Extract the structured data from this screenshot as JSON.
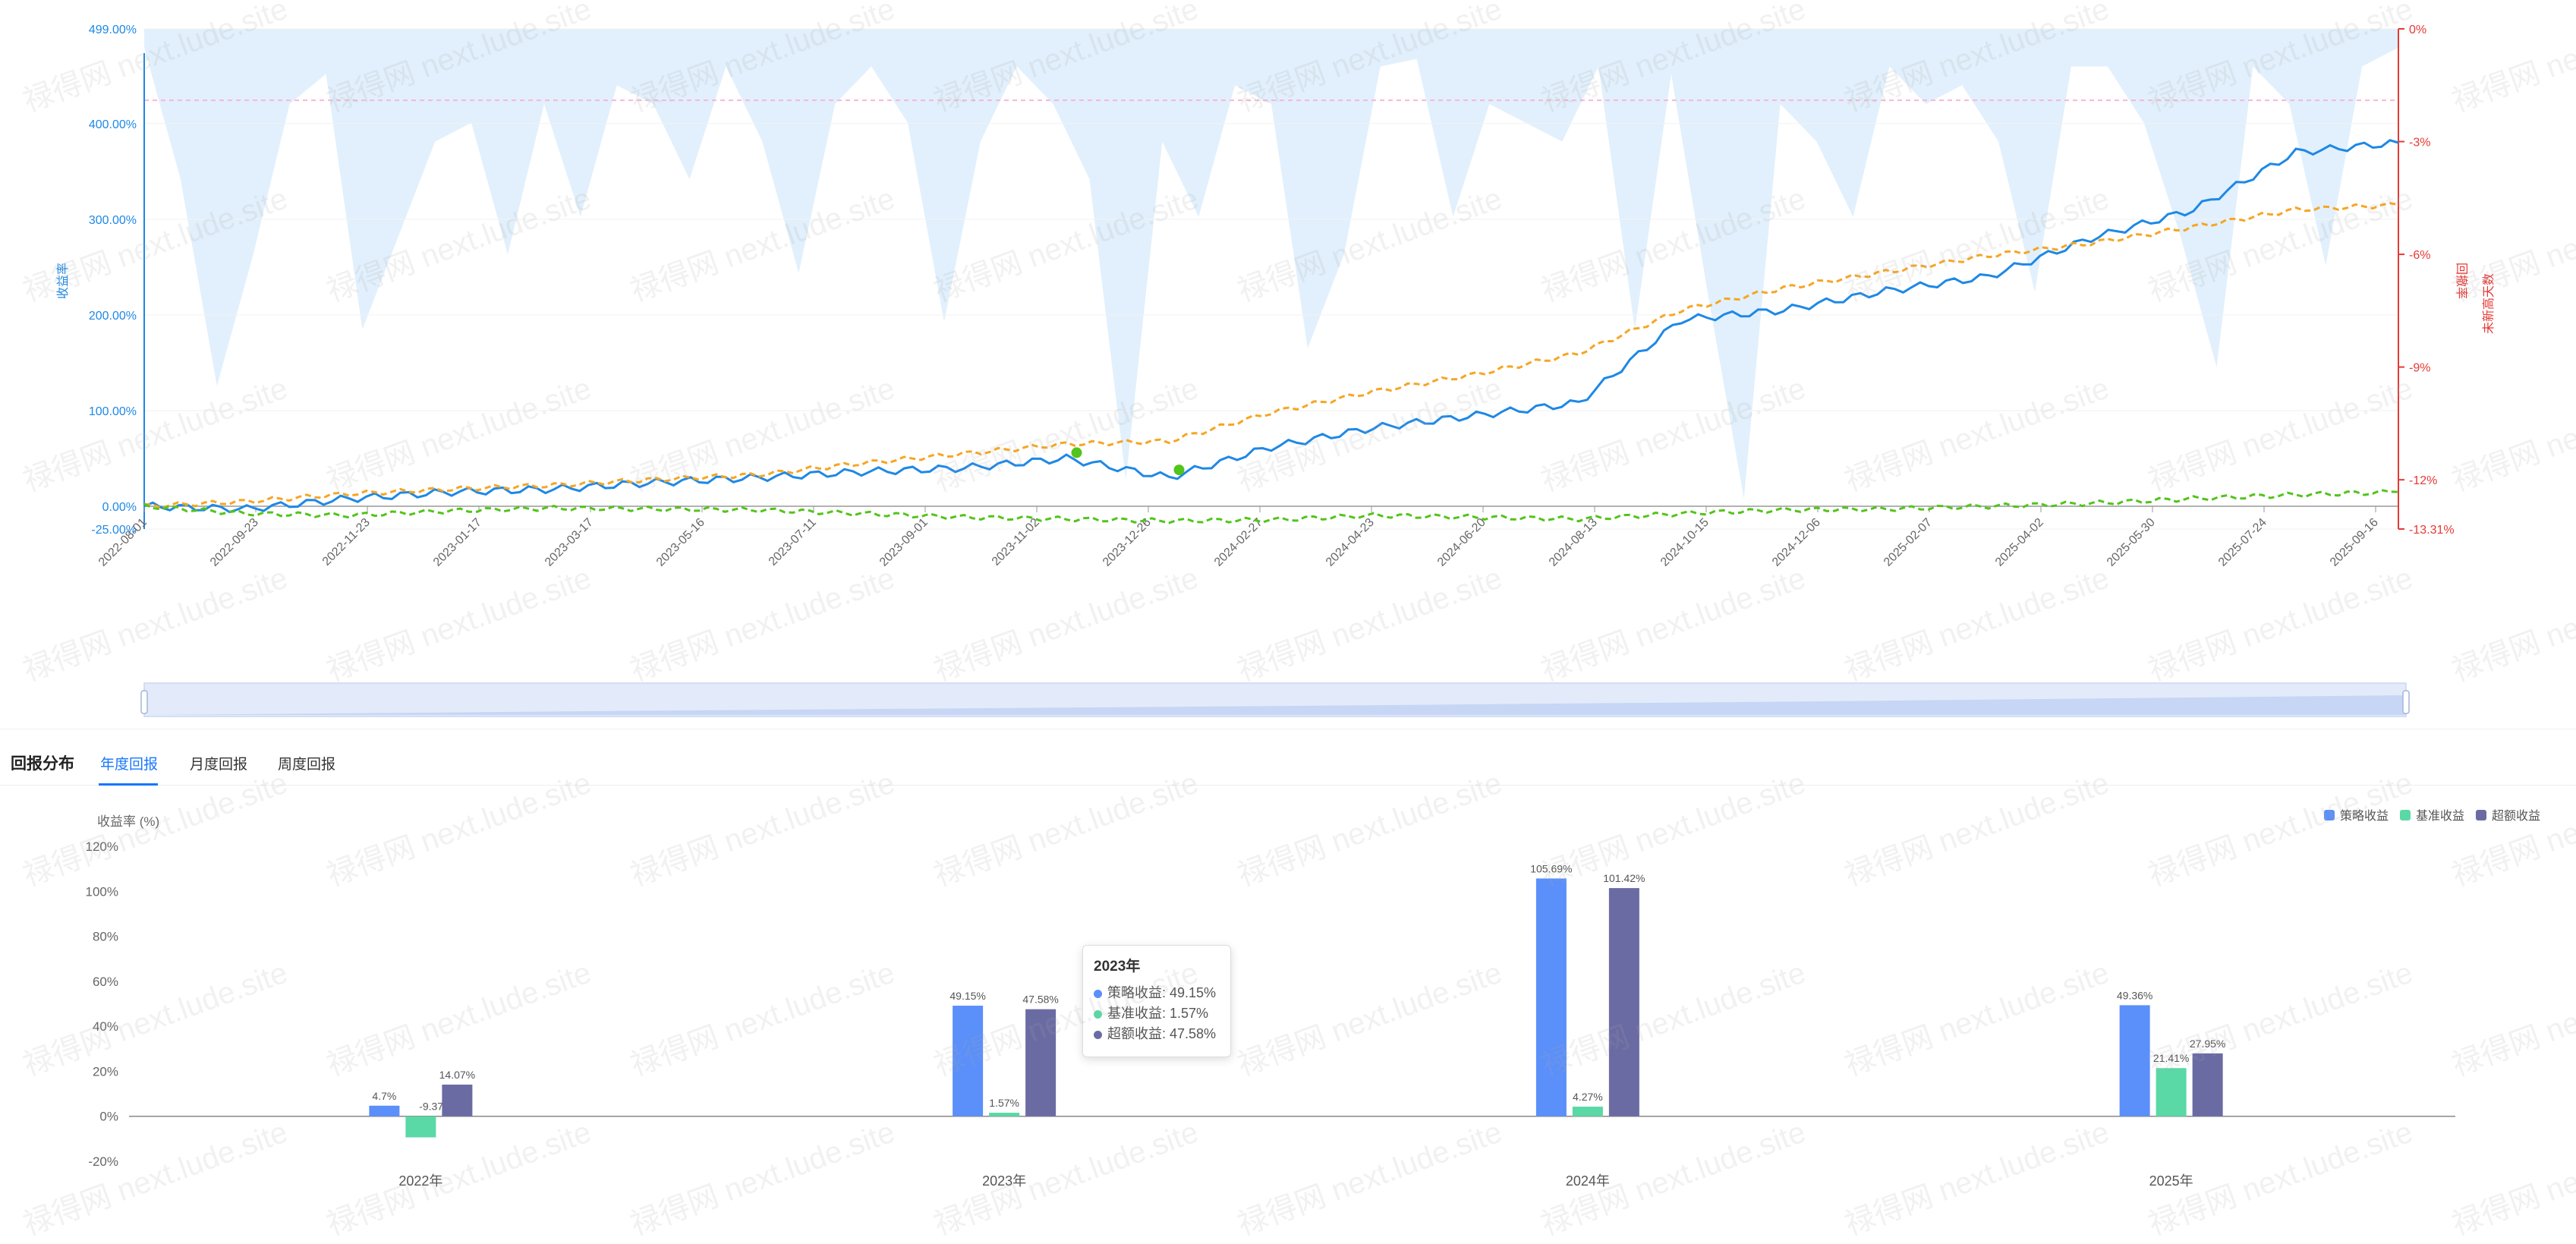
{
  "chart_data": [
    {
      "type": "line",
      "left_axis": {
        "label": "收益率",
        "ticks": [
          "499.00%",
          "400.00%",
          "300.00%",
          "200.00%",
          "100.00%",
          "0.00%",
          "-25.00%"
        ],
        "range": [
          -25,
          499
        ]
      },
      "right_axis": {
        "label": "回撤率",
        "ticks": [
          "0%",
          "-3%",
          "-6%",
          "-9%",
          "-12%",
          "-13.31%"
        ],
        "range": [
          -13.31,
          0
        ]
      },
      "right_axis_2": {
        "label": "未新高天数"
      },
      "x_ticks": [
        "2022-08-01",
        "2022-09-23",
        "2022-11-23",
        "2023-01-17",
        "2023-03-17",
        "2023-05-16",
        "2023-07-11",
        "2023-09-01",
        "2023-11-02",
        "2023-12-26",
        "2024-02-27",
        "2024-04-23",
        "2024-06-20",
        "2024-08-13",
        "2024-10-15",
        "2024-12-06",
        "2025-02-07",
        "2025-04-02",
        "2025-05-30",
        "2025-07-24",
        "2025-09-16"
      ],
      "series": [
        {
          "color": "#1e88e5",
          "style": "solid",
          "values": [
            0,
            -3,
            8,
            15,
            18,
            25,
            30,
            36,
            40,
            50,
            30,
            62,
            82,
            95,
            108,
            195,
            205,
            225,
            240,
            280,
            310,
            370,
            380
          ]
        },
        {
          "color": "#f5a623",
          "style": "dashed",
          "values": [
            0,
            5,
            13,
            18,
            22,
            28,
            33,
            45,
            55,
            65,
            68,
            98,
            120,
            138,
            160,
            205,
            228,
            245,
            262,
            275,
            292,
            310,
            315
          ]
        },
        {
          "color": "#52c41a",
          "style": "dashed",
          "values": [
            0,
            -8,
            -10,
            -5,
            -2,
            -3,
            -4,
            -8,
            -12,
            -14,
            -16,
            -15,
            -10,
            -12,
            -14,
            -8,
            -4,
            -3,
            0,
            3,
            8,
            12,
            15
          ]
        }
      ],
      "drawdown": {
        "color": "#dcedfb",
        "values": [
          -0.5,
          -4,
          -9.5,
          -6,
          -2,
          -1.2,
          -8,
          -5.5,
          -3,
          -2.5,
          -6,
          -2,
          -5,
          -1.5,
          -2,
          -4,
          -1,
          -3,
          -6.5,
          -2,
          -1,
          -2.5,
          -7.8,
          -3,
          -1,
          -2,
          -4,
          -12,
          -3,
          -5,
          -1.5,
          -2,
          -8.5,
          -6,
          -1,
          -0.8,
          -5,
          -2,
          -2.5,
          -3,
          -1,
          -8,
          -1.2,
          -7,
          -12.5,
          -2,
          -3,
          -5,
          -1,
          -2,
          -1.5,
          -3,
          -7,
          -1,
          -1,
          -2.5,
          -5.5,
          -9,
          -1,
          -2,
          -6.3,
          -1,
          -0.5
        ]
      },
      "dd_reference": -1.9,
      "markers": [
        {
          "x_index": 9.1,
          "y": 56,
          "color": "#52c41a"
        },
        {
          "x_index": 10.1,
          "y": 38,
          "color": "#52c41a"
        }
      ]
    },
    {
      "type": "bar",
      "ylabel": "收益率 (%)",
      "ylim": [
        -20,
        120
      ],
      "y_ticks": [
        "120%",
        "100%",
        "80%",
        "60%",
        "40%",
        "20%",
        "0%",
        "-20%"
      ],
      "categories": [
        "2022年",
        "2023年",
        "2024年",
        "2025年"
      ],
      "series": [
        {
          "name": "策略收益",
          "color": "#5b8ff9",
          "values": [
            4.7,
            49.15,
            105.69,
            49.36
          ],
          "labels": [
            "4.7%",
            "49.15%",
            "105.69%",
            "49.36%"
          ]
        },
        {
          "name": "基准收益",
          "color": "#5ad8a6",
          "values": [
            -9.37,
            1.57,
            4.27,
            21.41
          ],
          "labels": [
            "-9.37%",
            "1.57%",
            "4.27%",
            "21.41%"
          ]
        },
        {
          "name": "超额收益",
          "color": "#6b6ba3",
          "values": [
            14.07,
            47.58,
            101.42,
            27.95
          ],
          "labels": [
            "14.07%",
            "47.58%",
            "101.42%",
            "27.95%"
          ]
        }
      ]
    }
  ],
  "tabs": {
    "title": "回报分布",
    "items": [
      "年度回报",
      "月度回报",
      "周度回报"
    ],
    "active": 0
  },
  "tooltip": {
    "title": "2023年",
    "rows": [
      {
        "text": "策略收益: 49.15%",
        "color": "#5b8ff9"
      },
      {
        "text": "基准收益: 1.57%",
        "color": "#5ad8a6"
      },
      {
        "text": "超额收益: 47.58%",
        "color": "#6b6ba3"
      }
    ]
  },
  "watermark": "禄得网 next.lude.site"
}
